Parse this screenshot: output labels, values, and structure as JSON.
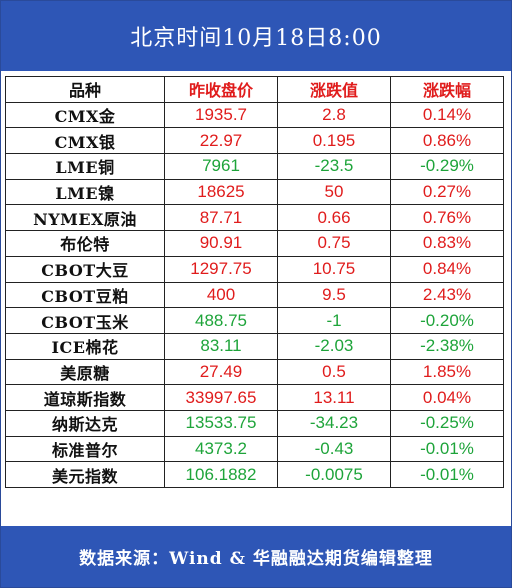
{
  "header": {
    "title": "北京时间10月18日8:00"
  },
  "columns": [
    "品种",
    "昨收盘价",
    "涨跌值",
    "涨跌幅"
  ],
  "colors": {
    "up": "#e01c1c",
    "down": "#1ea43a",
    "header_bg": "#2e56b6"
  },
  "rows": [
    {
      "name": "CMX金",
      "close": "1935.7",
      "change": "2.8",
      "pct": "0.14%",
      "dir": "up"
    },
    {
      "name": "CMX银",
      "close": "22.97",
      "change": "0.195",
      "pct": "0.86%",
      "dir": "up"
    },
    {
      "name": "LME铜",
      "close": "7961",
      "change": "-23.5",
      "pct": "-0.29%",
      "dir": "down"
    },
    {
      "name": "LME镍",
      "close": "18625",
      "change": "50",
      "pct": "0.27%",
      "dir": "up"
    },
    {
      "name": "NYMEX原油",
      "close": "87.71",
      "change": "0.66",
      "pct": "0.76%",
      "dir": "up"
    },
    {
      "name": "布伦特",
      "close": "90.91",
      "change": "0.75",
      "pct": "0.83%",
      "dir": "up"
    },
    {
      "name": "CBOT大豆",
      "close": "1297.75",
      "change": "10.75",
      "pct": "0.84%",
      "dir": "up"
    },
    {
      "name": "CBOT豆粕",
      "close": "400",
      "change": "9.5",
      "pct": "2.43%",
      "dir": "up"
    },
    {
      "name": "CBOT玉米",
      "close": "488.75",
      "change": "-1",
      "pct": "-0.20%",
      "dir": "down"
    },
    {
      "name": "ICE棉花",
      "close": "83.11",
      "change": "-2.03",
      "pct": "-2.38%",
      "dir": "down"
    },
    {
      "name": "美原糖",
      "close": "27.49",
      "change": "0.5",
      "pct": "1.85%",
      "dir": "up"
    },
    {
      "name": "道琼斯指数",
      "close": "33997.65",
      "change": "13.11",
      "pct": "0.04%",
      "dir": "up"
    },
    {
      "name": "纳斯达克",
      "close": "13533.75",
      "change": "-34.23",
      "pct": "-0.25%",
      "dir": "down"
    },
    {
      "name": "标准普尔",
      "close": "4373.2",
      "change": "-0.43",
      "pct": "-0.01%",
      "dir": "down"
    },
    {
      "name": "美元指数",
      "close": "106.1882",
      "change": "-0.0075",
      "pct": "-0.01%",
      "dir": "down"
    }
  ],
  "footer": {
    "source": "数据来源：Wind & 华融融达期货编辑整理"
  }
}
